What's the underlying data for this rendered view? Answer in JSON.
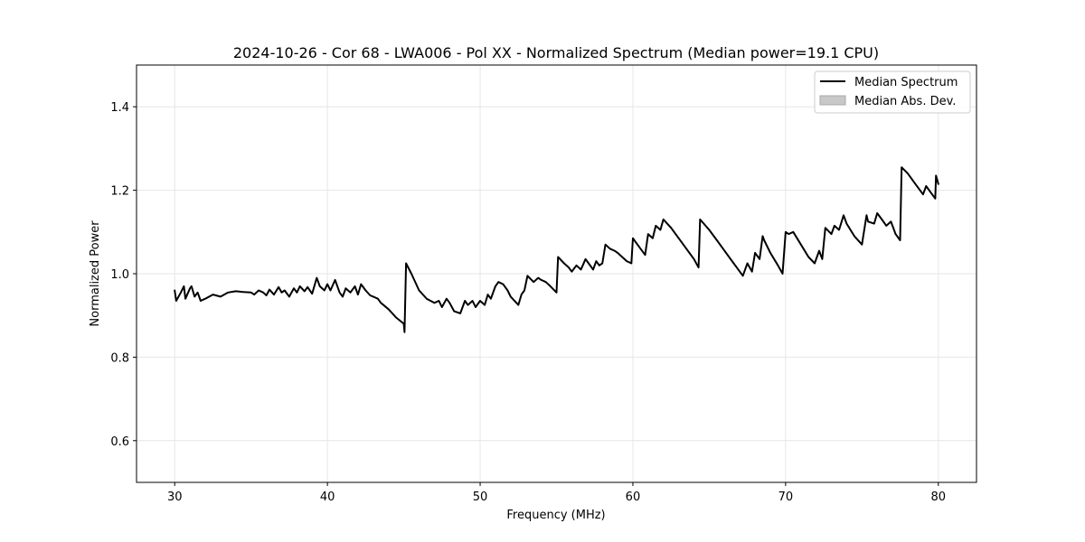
{
  "chart_data": {
    "type": "line",
    "title": "2024-10-26 - Cor 68 - LWA006 - Pol XX - Normalized Spectrum (Median power=19.1 CPU)",
    "xlabel": "Frequency (MHz)",
    "ylabel": "Normalized Power",
    "xlim": [
      27.5,
      82.5
    ],
    "ylim": [
      0.5,
      1.5
    ],
    "x_ticks": [
      30,
      40,
      50,
      60,
      70,
      80
    ],
    "y_ticks": [
      0.6,
      0.8,
      1.0,
      1.2,
      1.4
    ],
    "x_tick_labels": [
      "30",
      "40",
      "50",
      "60",
      "70",
      "80"
    ],
    "y_tick_labels": [
      "0.6",
      "0.8",
      "1.0",
      "1.2",
      "1.4"
    ],
    "grid": true,
    "legend_position": "top-right",
    "legend": [
      {
        "label": "Median Spectrum",
        "kind": "line",
        "color": "#000000"
      },
      {
        "label": "Median Abs. Dev.",
        "kind": "patch",
        "color": "#c8c8c8"
      }
    ],
    "series": [
      {
        "name": "Median Spectrum",
        "color": "#000000",
        "x": [
          30.0,
          30.1,
          30.4,
          30.6,
          30.7,
          31.0,
          31.1,
          31.3,
          31.5,
          31.7,
          32.0,
          32.5,
          33.0,
          33.5,
          34.0,
          34.5,
          35.0,
          35.2,
          35.5,
          35.8,
          36.0,
          36.2,
          36.5,
          36.8,
          37.0,
          37.2,
          37.5,
          37.8,
          38.0,
          38.2,
          38.5,
          38.7,
          39.0,
          39.3,
          39.5,
          39.8,
          40.0,
          40.2,
          40.5,
          40.8,
          41.0,
          41.2,
          41.5,
          41.8,
          42.0,
          42.2,
          42.5,
          42.8,
          43.0,
          43.3,
          43.5,
          44.0,
          44.5,
          45.0,
          45.05,
          45.15,
          45.5,
          46.0,
          46.5,
          47.0,
          47.3,
          47.5,
          47.8,
          48.0,
          48.3,
          48.7,
          49.0,
          49.2,
          49.5,
          49.7,
          50.0,
          50.3,
          50.5,
          50.7,
          51.0,
          51.2,
          51.5,
          51.8,
          52.0,
          52.5,
          52.7,
          52.9,
          53.1,
          53.5,
          53.8,
          54.0,
          54.3,
          54.6,
          55.0,
          55.1,
          55.5,
          55.8,
          56.0,
          56.3,
          56.6,
          56.9,
          57.1,
          57.4,
          57.6,
          57.8,
          58.0,
          58.2,
          58.5,
          58.8,
          59.0,
          59.3,
          59.6,
          59.9,
          60.0,
          60.2,
          60.5,
          60.8,
          61.0,
          61.3,
          61.5,
          61.8,
          62.0,
          62.5,
          63.0,
          63.5,
          64.0,
          64.3,
          64.4,
          65.0,
          65.5,
          66.0,
          66.5,
          67.0,
          67.2,
          67.5,
          67.8,
          68.0,
          68.3,
          68.5,
          68.6,
          69.0,
          69.5,
          69.8,
          70.0,
          70.2,
          70.5,
          71.0,
          71.5,
          71.9,
          72.2,
          72.4,
          72.6,
          73.0,
          73.2,
          73.5,
          73.8,
          74.0,
          74.5,
          75.0,
          75.3,
          75.4,
          75.8,
          76.0,
          76.3,
          76.6,
          76.9,
          77.2,
          77.5,
          77.6,
          78.0,
          78.5,
          79.0,
          79.2,
          79.5,
          79.8,
          79.85,
          80.0
        ],
        "values": [
          0.96,
          0.935,
          0.955,
          0.97,
          0.94,
          0.965,
          0.97,
          0.945,
          0.955,
          0.935,
          0.94,
          0.95,
          0.945,
          0.955,
          0.958,
          0.956,
          0.955,
          0.95,
          0.96,
          0.955,
          0.948,
          0.962,
          0.95,
          0.968,
          0.955,
          0.96,
          0.945,
          0.965,
          0.955,
          0.97,
          0.958,
          0.968,
          0.952,
          0.99,
          0.97,
          0.96,
          0.975,
          0.96,
          0.985,
          0.955,
          0.945,
          0.965,
          0.955,
          0.97,
          0.95,
          0.975,
          0.96,
          0.948,
          0.945,
          0.94,
          0.93,
          0.915,
          0.895,
          0.88,
          0.86,
          1.025,
          1.0,
          0.96,
          0.94,
          0.93,
          0.935,
          0.92,
          0.94,
          0.93,
          0.91,
          0.905,
          0.935,
          0.925,
          0.935,
          0.92,
          0.935,
          0.925,
          0.95,
          0.94,
          0.97,
          0.98,
          0.975,
          0.96,
          0.945,
          0.925,
          0.95,
          0.96,
          0.995,
          0.98,
          0.99,
          0.985,
          0.98,
          0.97,
          0.955,
          1.04,
          1.025,
          1.015,
          1.005,
          1.02,
          1.01,
          1.035,
          1.025,
          1.01,
          1.03,
          1.02,
          1.025,
          1.07,
          1.06,
          1.055,
          1.05,
          1.04,
          1.03,
          1.025,
          1.085,
          1.075,
          1.06,
          1.045,
          1.095,
          1.085,
          1.115,
          1.105,
          1.13,
          1.11,
          1.085,
          1.06,
          1.035,
          1.015,
          1.13,
          1.105,
          1.08,
          1.055,
          1.03,
          1.005,
          0.995,
          1.025,
          1.005,
          1.05,
          1.035,
          1.09,
          1.08,
          1.05,
          1.02,
          1.0,
          1.1,
          1.095,
          1.1,
          1.07,
          1.04,
          1.025,
          1.055,
          1.035,
          1.11,
          1.095,
          1.115,
          1.105,
          1.14,
          1.12,
          1.09,
          1.07,
          1.14,
          1.125,
          1.12,
          1.145,
          1.13,
          1.115,
          1.125,
          1.095,
          1.08,
          1.255,
          1.24,
          1.215,
          1.19,
          1.21,
          1.195,
          1.18,
          1.235,
          1.215
        ]
      }
    ]
  }
}
